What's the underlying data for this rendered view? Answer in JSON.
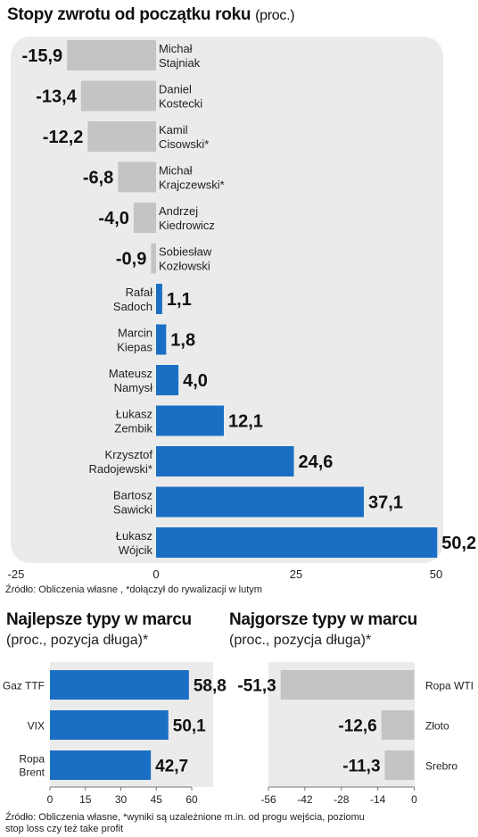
{
  "header": {
    "title": "Stopy zwrotu od początku roku",
    "unit": "(proc.)"
  },
  "source_top": "Źródło: Obliczenia własne , *dołączył do rywalizacji w lutym",
  "best": {
    "title": "Najlepsze typy w marcu",
    "subtitle": "(proc., pozycja długa)*"
  },
  "worst": {
    "title": "Najgorsze typy w marcu",
    "subtitle": "(proc., pozycja długa)*"
  },
  "source_bottom": [
    "Źródło: Obliczenia własne, *wyniki są uzależnione m.in. od progu wejścia, poziomu",
    "stop loss czy też take profit"
  ],
  "colors": {
    "positive": "#1a6fc4",
    "negative": "#c4c4c4",
    "panel": "#ebebeb"
  },
  "chart_data": [
    {
      "type": "bar",
      "orientation": "horizontal",
      "title": "Stopy zwrotu od początku roku (proc.)",
      "categories": [
        [
          "Michał",
          "Stajniak"
        ],
        [
          "Daniel",
          "Kostecki"
        ],
        [
          "Kamil",
          "Cisowski*"
        ],
        [
          "Michał",
          "Krajczewski*"
        ],
        [
          "Andrzej",
          "Kiedrowicz"
        ],
        [
          "Sobiesław",
          "Kozłowski"
        ],
        [
          "Rafał",
          "Sadoch"
        ],
        [
          "Marcin",
          "Kiepas"
        ],
        [
          "Mateusz",
          "Namysł"
        ],
        [
          "Łukasz",
          "Zembik"
        ],
        [
          "Krzysztof",
          "Radojewski*"
        ],
        [
          "Bartosz",
          "Sawicki"
        ],
        [
          "Łukasz",
          "Wójcik"
        ]
      ],
      "values": [
        -15.9,
        -13.4,
        -12.2,
        -6.8,
        -4.0,
        -0.9,
        1.1,
        1.8,
        4.0,
        12.1,
        24.6,
        37.1,
        50.2
      ],
      "value_labels": [
        "-15,9",
        "-13,4",
        "-12,2",
        "-6,8",
        "-4,0",
        "-0,9",
        "1,1",
        "1,8",
        "4,0",
        "12,1",
        "24,6",
        "37,1",
        "50,2"
      ],
      "xlim": [
        -25,
        50
      ],
      "xticks": [
        "-25",
        "0",
        "25",
        "50"
      ]
    },
    {
      "type": "bar",
      "orientation": "horizontal",
      "title": "Najlepsze typy w marcu",
      "categories": [
        [
          "Gaz TTF"
        ],
        [
          "VIX"
        ],
        [
          "Ropa",
          "Brent"
        ]
      ],
      "values": [
        58.8,
        50.1,
        42.7
      ],
      "value_labels": [
        "58,8",
        "50,1",
        "42,7"
      ],
      "xlim": [
        0,
        60
      ],
      "xticks": [
        "0",
        "15",
        "30",
        "45",
        "60"
      ]
    },
    {
      "type": "bar",
      "orientation": "horizontal",
      "title": "Najgorsze typy w marcu",
      "categories": [
        [
          "Ropa WTI"
        ],
        [
          "Złoto"
        ],
        [
          "Srebro"
        ]
      ],
      "values": [
        -51.3,
        -12.6,
        -11.3
      ],
      "value_labels": [
        "-51,3",
        "-12,6",
        "-11,3"
      ],
      "xlim": [
        -56,
        0
      ],
      "xticks": [
        "-56",
        "-42",
        "-28",
        "-14",
        "0"
      ]
    }
  ]
}
